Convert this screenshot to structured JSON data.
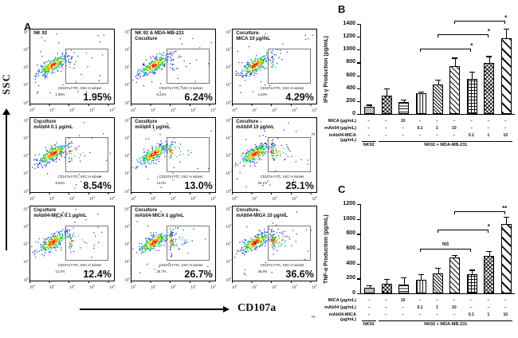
{
  "panelA": {
    "label": "A",
    "y_axis_arrow_label": "SSC",
    "x_axis_arrow_label": "CD107a",
    "axis_decades": [
      0,
      1,
      2,
      3,
      4
    ],
    "gate_caption": "CD107a FITC, SSC-H subset",
    "plots": [
      {
        "title": "NK 92",
        "percent": "1.95%",
        "pct": 1.95
      },
      {
        "title": "NK 92 & MDA-MB-231\nCoculture",
        "percent": "6.24%",
        "pct": 6.24
      },
      {
        "title": "Coculture\nMICA 10 µg/mL",
        "percent": "4.29%",
        "pct": 4.29
      },
      {
        "title": "Coculture\nmAb04 0.1 µg/mL",
        "percent": "8.54%",
        "pct": 8.54
      },
      {
        "title": "Coculture\nmAb04 1 µg/mL",
        "percent": "13.0%",
        "pct": 13.0
      },
      {
        "title": "Coculture\nmAb04 10 µg/mL",
        "percent": "25.1%",
        "pct": 25.1
      },
      {
        "title": "Coculture\nmAb04-MICA 0.1 µg/mL",
        "percent": "12.4%",
        "pct": 12.4
      },
      {
        "title": "Coculture\nmAb04-MICA 1 µg/mL",
        "percent": "26.7%",
        "pct": 26.7
      },
      {
        "title": "Coculture\nmAb04-MICA 10 µg/mL",
        "percent": "36.6%",
        "pct": 36.6
      }
    ]
  },
  "chart_data": [
    {
      "id": "B",
      "panel_label": "B",
      "type": "bar",
      "ylabel": "IFN-γ  Production (pg/mL)",
      "ylim": [
        0,
        1400
      ],
      "ytick_step": 200,
      "values": [
        110,
        280,
        190,
        320,
        460,
        740,
        550,
        790,
        1180
      ],
      "errors": [
        20,
        100,
        15,
        15,
        60,
        120,
        90,
        95,
        130
      ],
      "patterns": [
        "checker-fine",
        "checker",
        "hlines",
        "vlines",
        "diag-fine",
        "diag",
        "grid",
        "diag-cross",
        "diag-wide"
      ],
      "brackets": [
        {
          "from": 3,
          "to": 6,
          "label": "*",
          "y": 1020
        },
        {
          "from": 4,
          "to": 7,
          "label": "*",
          "y": 1235
        },
        {
          "from": 5,
          "to": 8,
          "label": "*",
          "y": 1450
        }
      ]
    },
    {
      "id": "C",
      "panel_label": "C",
      "type": "bar",
      "ylabel": "TNF-α  Production (pg/mL)",
      "ylim": [
        0,
        1200
      ],
      "ytick_step": 200,
      "values": [
        80,
        130,
        115,
        185,
        270,
        480,
        260,
        500,
        930
      ],
      "errors": [
        15,
        50,
        85,
        60,
        65,
        20,
        45,
        60,
        90
      ],
      "patterns": [
        "checker-fine",
        "checker",
        "hlines",
        "vlines",
        "diag-fine",
        "diag",
        "grid",
        "diag-cross",
        "diag-wide"
      ],
      "brackets": [
        {
          "from": 3,
          "to": 6,
          "label": "NS",
          "y": 600
        },
        {
          "from": 4,
          "to": 7,
          "label": "*",
          "y": 855
        },
        {
          "from": 5,
          "to": 8,
          "label": "**",
          "y": 1105
        }
      ]
    }
  ],
  "treatment_table": {
    "rows": [
      {
        "label": "MICA (µg/mL)",
        "values": [
          "–",
          "–",
          "10",
          "–",
          "–",
          "–",
          "–",
          "–",
          "–"
        ]
      },
      {
        "label": "mAb04 (µg/mL)",
        "values": [
          "–",
          "–",
          "–",
          "0.1",
          "1",
          "10",
          "–",
          "–",
          "–"
        ]
      },
      {
        "label": "mAb04-MICA (µg/mL)",
        "values": [
          "–",
          "–",
          "–",
          "–",
          "–",
          "–",
          "0.1",
          "1",
          "10"
        ]
      }
    ],
    "groups": [
      {
        "label": "NK92",
        "from": 0,
        "to": 0
      },
      {
        "label": "NK92 + MDA-MB-231",
        "from": 1,
        "to": 8
      }
    ]
  },
  "colors": {
    "ink": "#111111",
    "dot_blue": "#2233cc",
    "dot_cyan": "#19b5c2",
    "dot_green": "#22bb22",
    "dot_yellow": "#e8d800",
    "dot_orange": "#f08000",
    "dot_red": "#e01010"
  },
  "stray_marks": [
    "m.",
    "m."
  ]
}
